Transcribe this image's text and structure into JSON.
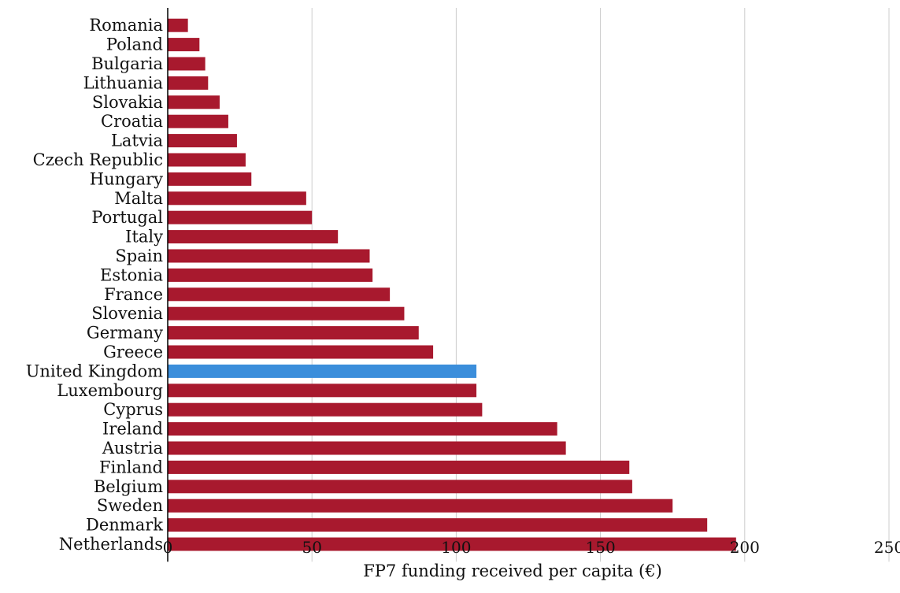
{
  "chart_data": {
    "type": "bar",
    "orientation": "horizontal",
    "categories": [
      "Romania",
      "Poland",
      "Bulgaria",
      "Lithuania",
      "Slovakia",
      "Croatia",
      "Latvia",
      "Czech Republic",
      "Hungary",
      "Malta",
      "Portugal",
      "Italy",
      "Spain",
      "Estonia",
      "France",
      "Slovenia",
      "Germany",
      "Greece",
      "United Kingdom",
      "Luxembourg",
      "Cyprus",
      "Ireland",
      "Austria",
      "Finland",
      "Belgium",
      "Sweden",
      "Denmark",
      "Netherlands"
    ],
    "values": [
      7,
      11,
      13,
      14,
      18,
      21,
      24,
      27,
      29,
      48,
      50,
      59,
      70,
      71,
      77,
      82,
      87,
      92,
      107,
      107,
      109,
      135,
      138,
      160,
      161,
      175,
      187,
      197
    ],
    "highlight": "United Kingdom",
    "xlabel": "FP7 funding received per capita (€)",
    "ylabel": "",
    "xlim": [
      0,
      250
    ],
    "xticks": [
      0,
      50,
      100,
      150,
      200,
      250
    ],
    "grid": "vertical",
    "legend": "none",
    "colors": {
      "bar": "#a8192e",
      "highlight": "#3b8edb",
      "grid": "#cccccc",
      "axis": "#000000"
    }
  }
}
